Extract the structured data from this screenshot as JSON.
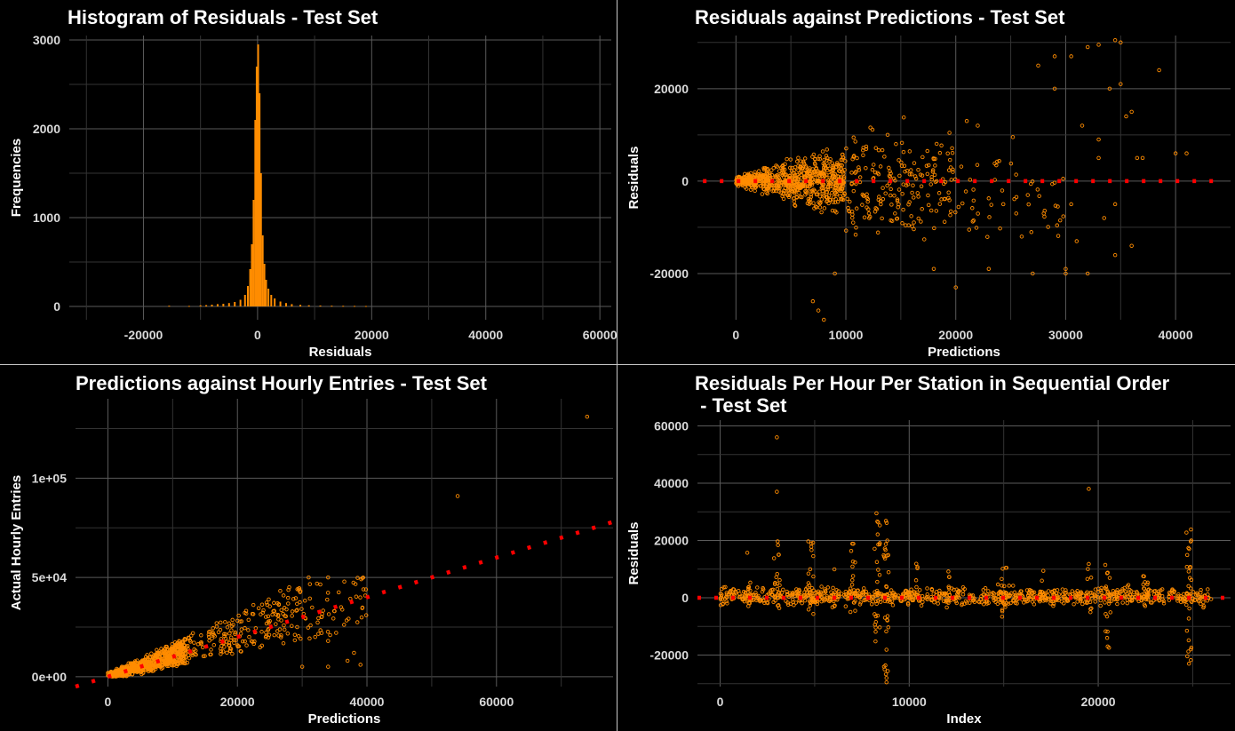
{
  "chart_data": [
    {
      "id": "hist",
      "type": "bar",
      "title_lines": [
        "Histogram of Residuals - Test Set"
      ],
      "xlabel": "Residuals",
      "ylabel": "Frequencies",
      "xlim": [
        -33000,
        62000
      ],
      "ylim": [
        -150,
        3050
      ],
      "xticks": [
        -20000,
        0,
        20000,
        40000,
        60000
      ],
      "xticklabels": [
        "-20000",
        "0",
        "20000",
        "40000",
        "60000"
      ],
      "yticks": [
        0,
        1000,
        2000,
        3000
      ],
      "yticklabels": [
        "0",
        "1000",
        "2000",
        "3000"
      ],
      "color": "#ff8c00",
      "bins": [
        {
          "x": -15500,
          "y": 8
        },
        {
          "x": -12000,
          "y": 6
        },
        {
          "x": -10000,
          "y": 12
        },
        {
          "x": -9000,
          "y": 15
        },
        {
          "x": -8000,
          "y": 20
        },
        {
          "x": -7000,
          "y": 26
        },
        {
          "x": -6000,
          "y": 30
        },
        {
          "x": -5000,
          "y": 38
        },
        {
          "x": -4000,
          "y": 50
        },
        {
          "x": -3000,
          "y": 75
        },
        {
          "x": -2200,
          "y": 130
        },
        {
          "x": -1700,
          "y": 230
        },
        {
          "x": -1300,
          "y": 420
        },
        {
          "x": -1000,
          "y": 700
        },
        {
          "x": -700,
          "y": 1200
        },
        {
          "x": -400,
          "y": 2100
        },
        {
          "x": -150,
          "y": 2700
        },
        {
          "x": 100,
          "y": 2950
        },
        {
          "x": 350,
          "y": 2400
        },
        {
          "x": 600,
          "y": 1500
        },
        {
          "x": 900,
          "y": 800
        },
        {
          "x": 1200,
          "y": 480
        },
        {
          "x": 1500,
          "y": 300
        },
        {
          "x": 1900,
          "y": 200
        },
        {
          "x": 2400,
          "y": 130
        },
        {
          "x": 3000,
          "y": 90
        },
        {
          "x": 4000,
          "y": 55
        },
        {
          "x": 5000,
          "y": 38
        },
        {
          "x": 6000,
          "y": 26
        },
        {
          "x": 7500,
          "y": 18
        },
        {
          "x": 9000,
          "y": 13
        },
        {
          "x": 11000,
          "y": 10
        },
        {
          "x": 13000,
          "y": 8
        },
        {
          "x": 15000,
          "y": 7
        },
        {
          "x": 17000,
          "y": 6
        },
        {
          "x": 19000,
          "y": 5
        }
      ]
    },
    {
      "id": "resid_pred",
      "type": "scatter",
      "title_lines": [
        "Residuals against Predictions - Test Set"
      ],
      "xlabel": "Predictions",
      "ylabel": "Residuals",
      "xlim": [
        -3500,
        45000
      ],
      "ylim": [
        -30000,
        31500
      ],
      "xticks": [
        0,
        10000,
        20000,
        30000,
        40000
      ],
      "xticklabels": [
        "0",
        "10000",
        "20000",
        "30000",
        "40000"
      ],
      "yticks": [
        -20000,
        0,
        20000
      ],
      "yticklabels": [
        "-20000",
        "0",
        "20000"
      ],
      "color": "#ff8c00",
      "ref_line": {
        "x": [
          -3000,
          44000
        ],
        "y": [
          0,
          0
        ],
        "color": "#ff0000"
      },
      "clusters": [
        {
          "x_range": [
            0,
            10000
          ],
          "y_range": [
            -9000,
            9000
          ],
          "n": 700
        },
        {
          "x_range": [
            10000,
            20000
          ],
          "y_range": [
            -18000,
            16000
          ],
          "n": 200
        },
        {
          "x_range": [
            20000,
            30000
          ],
          "y_range": [
            -20000,
            12000
          ],
          "n": 50
        }
      ],
      "points": [
        [
          7000,
          -26000
        ],
        [
          7500,
          -28000
        ],
        [
          8000,
          -30000
        ],
        [
          9000,
          -20000
        ],
        [
          18000,
          -19000
        ],
        [
          20000,
          -23000
        ],
        [
          23000,
          -19000
        ],
        [
          27000,
          -20000
        ],
        [
          30000,
          -20000
        ],
        [
          32000,
          -20000
        ],
        [
          34500,
          -16000
        ],
        [
          31000,
          -13000
        ],
        [
          36000,
          -14000
        ],
        [
          27500,
          25000
        ],
        [
          29000,
          27000
        ],
        [
          30500,
          27000
        ],
        [
          32000,
          29000
        ],
        [
          33000,
          29500
        ],
        [
          34500,
          30500
        ],
        [
          35000,
          30000
        ],
        [
          38500,
          24000
        ],
        [
          35000,
          21000
        ],
        [
          34000,
          20000
        ],
        [
          31500,
          12000
        ],
        [
          36000,
          15000
        ],
        [
          35500,
          14000
        ],
        [
          33000,
          5000
        ],
        [
          40000,
          6000
        ],
        [
          41000,
          6000
        ],
        [
          36500,
          5000
        ],
        [
          37000,
          5000
        ],
        [
          34500,
          -5000
        ],
        [
          30500,
          -5000
        ],
        [
          33500,
          -8000
        ],
        [
          28000,
          -7000
        ],
        [
          25500,
          -7000
        ],
        [
          26000,
          -12000
        ],
        [
          30000,
          -19000
        ],
        [
          29000,
          20000
        ],
        [
          33000,
          9000
        ],
        [
          21000,
          13000
        ],
        [
          22000,
          12000
        ]
      ]
    },
    {
      "id": "pred_actual",
      "type": "scatter",
      "title_lines": [
        "Predictions against Hourly Entries - Test Set"
      ],
      "xlabel": "Predictions",
      "ylabel": "Actual Hourly Entries",
      "xlim": [
        -5000,
        78000
      ],
      "ylim": [
        -5000,
        140000
      ],
      "xticks": [
        0,
        20000,
        40000,
        60000
      ],
      "xticklabels": [
        "0",
        "20000",
        "40000",
        "60000"
      ],
      "yticks": [
        0,
        50000,
        100000
      ],
      "yticklabels": [
        "0e+00",
        "5e+04",
        "1e+05"
      ],
      "color": "#ff8c00",
      "ref_line": {
        "x": [
          -5000,
          78000
        ],
        "y": [
          -5000,
          78000
        ],
        "color": "#ff0000"
      },
      "clusters": [
        {
          "x_range": [
            0,
            12000
          ],
          "y_range": [
            0,
            35000
          ],
          "n": 700
        },
        {
          "x_range": [
            12000,
            30000
          ],
          "y_range": [
            0,
            45000
          ],
          "n": 200
        },
        {
          "x_range": [
            30000,
            40000
          ],
          "y_range": [
            2000,
            50000
          ],
          "n": 50
        }
      ],
      "points": [
        [
          74000,
          131000
        ],
        [
          54000,
          91000
        ],
        [
          35000,
          33000
        ],
        [
          33000,
          22000
        ],
        [
          32000,
          20000
        ],
        [
          34000,
          18000
        ],
        [
          30000,
          5000
        ],
        [
          34000,
          5000
        ],
        [
          37000,
          8000
        ],
        [
          36000,
          35000
        ],
        [
          31000,
          50000
        ],
        [
          34000,
          50000
        ],
        [
          33000,
          30000
        ],
        [
          38000,
          12000
        ],
        [
          39000,
          6000
        ],
        [
          25000,
          28000
        ],
        [
          28000,
          45000
        ]
      ]
    },
    {
      "id": "resid_index",
      "type": "scatter",
      "title_lines": [
        "Residuals Per Hour Per Station in Sequential Order",
        " - Test Set"
      ],
      "xlabel": "Index",
      "ylabel": "Residuals",
      "xlim": [
        -1200,
        27000
      ],
      "ylim": [
        -31000,
        62000
      ],
      "xticks": [
        0,
        10000,
        20000
      ],
      "xticklabels": [
        "0",
        "10000",
        "20000"
      ],
      "yticks": [
        -20000,
        0,
        20000,
        40000,
        60000
      ],
      "yticklabels": [
        "-20000",
        "0",
        "20000",
        "40000",
        "60000"
      ],
      "color": "#ff8c00",
      "ref_line": {
        "x": [
          -1200,
          26800
        ],
        "y": [
          0,
          0
        ],
        "color": "#ff0000"
      },
      "clusters": [
        {
          "x_range": [
            0,
            26000
          ],
          "y_range": [
            -4000,
            5000
          ],
          "n": 900
        }
      ],
      "spikes": [
        {
          "x": 1500,
          "y_range": [
            -3000,
            16000
          ],
          "n": 10
        },
        {
          "x": 3000,
          "y_range": [
            -4000,
            20000
          ],
          "n": 16
        },
        {
          "x": 4800,
          "y_range": [
            -6000,
            20000
          ],
          "n": 14
        },
        {
          "x": 6000,
          "y_range": [
            -4000,
            10000
          ],
          "n": 8
        },
        {
          "x": 7000,
          "y_range": [
            -5000,
            20000
          ],
          "n": 14
        },
        {
          "x": 8300,
          "y_range": [
            -16000,
            30000
          ],
          "n": 22
        },
        {
          "x": 8800,
          "y_range": [
            -30000,
            28000
          ],
          "n": 28
        },
        {
          "x": 10500,
          "y_range": [
            -4000,
            12000
          ],
          "n": 8
        },
        {
          "x": 12000,
          "y_range": [
            -3000,
            12000
          ],
          "n": 8
        },
        {
          "x": 15000,
          "y_range": [
            -10000,
            20000
          ],
          "n": 18
        },
        {
          "x": 17000,
          "y_range": [
            -3000,
            12000
          ],
          "n": 8
        },
        {
          "x": 19500,
          "y_range": [
            -6000,
            12000
          ],
          "n": 10
        },
        {
          "x": 20500,
          "y_range": [
            -18000,
            12000
          ],
          "n": 14
        },
        {
          "x": 22500,
          "y_range": [
            -3000,
            8000
          ],
          "n": 8
        },
        {
          "x": 24800,
          "y_range": [
            -24000,
            24000
          ],
          "n": 24
        }
      ],
      "points": [
        [
          3000,
          56000
        ],
        [
          3000,
          37000
        ],
        [
          19500,
          38000
        ],
        [
          8800,
          -28000
        ],
        [
          8800,
          -29500
        ],
        [
          8700,
          -25000
        ],
        [
          24800,
          -23000
        ],
        [
          24900,
          -18000
        ],
        [
          20500,
          -17000
        ]
      ]
    }
  ]
}
